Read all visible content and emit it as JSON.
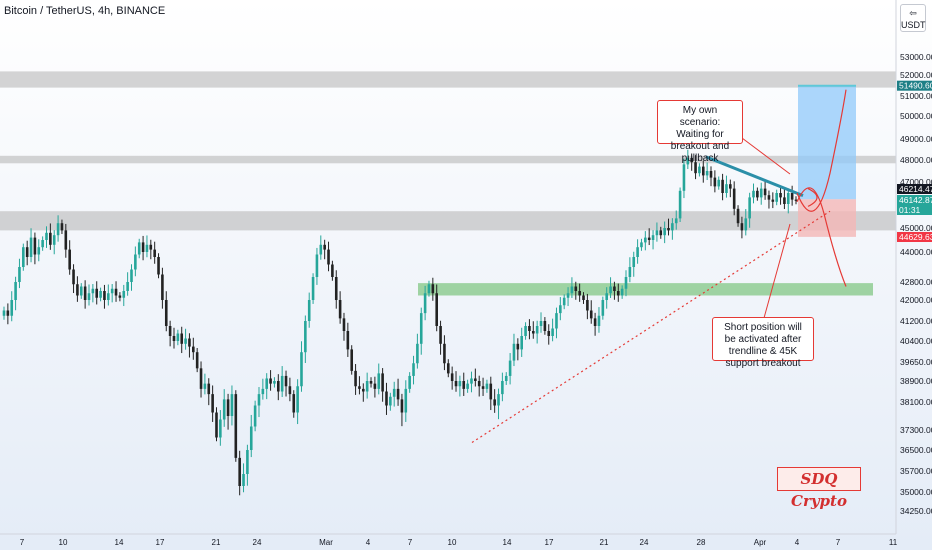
{
  "header": {
    "title": "Bitcoin / TetherUS, 4h, BINANCE",
    "currency": "USDT"
  },
  "colors": {
    "up": "#26a69a",
    "down": "#222222",
    "resistance_zone": "#bdbdbd",
    "support_zone": "#81c784",
    "target_zone": "#90caf9",
    "stop_zone": "#f4b6b6",
    "trendline": "#e53935",
    "wedge_line": "#2b8fa8",
    "tag_dark": "#131722",
    "tag_red": "#f23645",
    "tag_teal": "#1e7f86"
  },
  "annotations": {
    "scenario": "My own scenario: Waiting for breakout and pullback",
    "short_position": "Short position will be activated after trendline & 45K support breakout",
    "watermark": "SDQ Crypto"
  },
  "chart_data": {
    "type": "candlestick",
    "title": "Bitcoin / TetherUS, 4h, BINANCE",
    "y_axis": {
      "ticks": [
        34250,
        35000,
        35700,
        36500,
        37300,
        38100,
        38900,
        39650,
        40400,
        41200,
        42000,
        42800,
        44000,
        45000,
        46000,
        47000,
        48000,
        49000,
        50000,
        51000,
        52000,
        53000
      ],
      "tick_labels": [
        "34250.00",
        "35000.00",
        "35700.00",
        "36500.00",
        "37300.00",
        "38100.00",
        "38900.00",
        "39650.00",
        "40400.00",
        "41200.00",
        "42000.00",
        "42800.00",
        "44000.00",
        "45000.00",
        "46000.00",
        "47000.00",
        "48000.00",
        "49000.00",
        "50000.00",
        "51000.00",
        "52000.00",
        "53000.00"
      ]
    },
    "x_axis": {
      "tick_labels": [
        "7",
        "10",
        "14",
        "17",
        "21",
        "24",
        "Mar",
        "4",
        "7",
        "10",
        "14",
        "17",
        "21",
        "24",
        "28",
        "Apr",
        "4",
        "7",
        "11"
      ]
    },
    "price_tags": [
      {
        "value": "51490.60",
        "style": "target"
      },
      {
        "value": "46214.47",
        "style": "dark"
      },
      {
        "value": "46142.87",
        "style": "current"
      },
      {
        "value": "01:31",
        "style": "countdown"
      },
      {
        "value": "44629.63",
        "style": "stop"
      }
    ],
    "zones": [
      {
        "name": "resistance",
        "from": 51400,
        "to": 52200
      },
      {
        "name": "resistance",
        "from": 47850,
        "to": 48200
      },
      {
        "name": "support",
        "from": 44900,
        "to": 45700
      },
      {
        "name": "support",
        "from": 42200,
        "to": 42750
      }
    ],
    "closes": [
      41600,
      41400,
      42000,
      42800,
      43400,
      44200,
      43800,
      44600,
      43900,
      44200,
      44500,
      44800,
      44300,
      44700,
      45200,
      44900,
      44100,
      43300,
      42700,
      42200,
      42600,
      42000,
      42300,
      42500,
      42100,
      42400,
      42000,
      42300,
      42500,
      42200,
      42100,
      42400,
      42800,
      43300,
      43900,
      44400,
      44000,
      44300,
      44100,
      43800,
      43100,
      42000,
      41000,
      40600,
      40400,
      40700,
      40300,
      40500,
      40200,
      40000,
      39400,
      38600,
      38800,
      38400,
      37800,
      37000,
      37600,
      38200,
      37700,
      38400,
      36200,
      35200,
      35600,
      36500,
      37400,
      38000,
      38400,
      38600,
      39000,
      38800,
      38900,
      38500,
      39100,
      38700,
      38400,
      37800,
      38700,
      40000,
      41200,
      42000,
      43000,
      43900,
      44300,
      44100,
      43500,
      43000,
      42000,
      41300,
      40800,
      40100,
      39300,
      38700,
      38600,
      38500,
      38900,
      38800,
      38600,
      39200,
      38500,
      38000,
      38300,
      38600,
      38200,
      37800,
      38600,
      39100,
      39600,
      40300,
      41500,
      42300,
      42700,
      42300,
      41000,
      40300,
      39600,
      39200,
      38900,
      38700,
      38900,
      38600,
      38800,
      39000,
      38900,
      38700,
      38600,
      38800,
      38200,
      38000,
      38400,
      38900,
      39100,
      39700,
      40300,
      40100,
      40600,
      41000,
      40800,
      40700,
      41000,
      41200,
      40800,
      40600,
      40900,
      41500,
      41800,
      42100,
      42300,
      42600,
      42400,
      42200,
      42000,
      41600,
      41300,
      41000,
      41400,
      42000,
      42300,
      42600,
      42400,
      42200,
      42500,
      43000,
      43400,
      43800,
      44200,
      44400,
      44600,
      44500,
      44700,
      44900,
      44700,
      45000,
      44900,
      45200,
      45400,
      46600,
      47800,
      48100,
      47900,
      47400,
      47700,
      47300,
      47500,
      47200,
      46800,
      47100,
      46500,
      46900,
      46700,
      45800,
      45200,
      44900,
      45400,
      46300,
      46600,
      46300,
      46700,
      46400,
      46200,
      46100,
      46500,
      46300,
      46000,
      46500,
      46200,
      46142
    ]
  }
}
